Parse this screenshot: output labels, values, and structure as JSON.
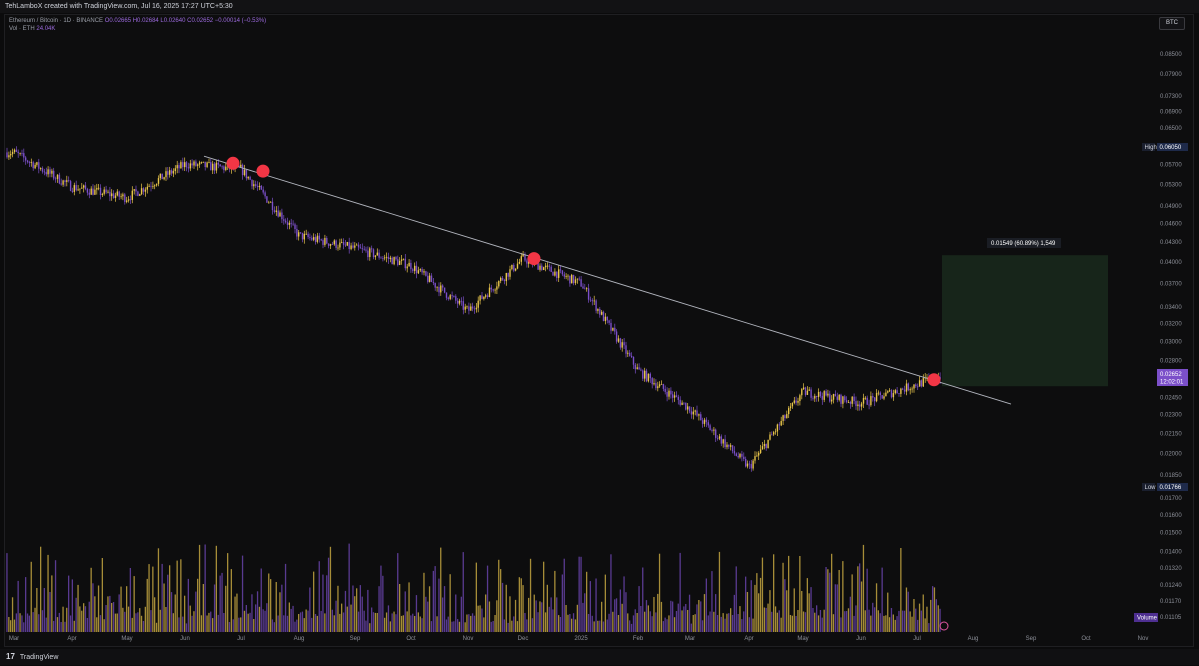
{
  "header": {
    "caption": "TehLamboX created with TradingView.com, Jul 16, 2025 17:27 UTC+5:30"
  },
  "legend": {
    "symbol": "Ethereum / Bitcoin · 1D · BINANCE",
    "ohlc": "O0.02665 H0.02684 L0.02640 C0.02652 −0.00014 (−0.53%)",
    "vol_label": "Vol · ETH",
    "vol_value": "24.04K"
  },
  "currency_badge": "BTC",
  "footer": {
    "logo": "17",
    "brand": "TradingView"
  },
  "colors": {
    "bullish": "#e8c54a",
    "bearish": "#7b4fc9",
    "touch_marker": "#f23645",
    "trendline": "#b2b5be",
    "target_box": "#1a2a1c"
  },
  "chart_data": {
    "type": "candlestick",
    "title": "",
    "y_axis": {
      "scale": "log",
      "ticks": [
        "0.08500",
        "0.07900",
        "0.07300",
        "0.06900",
        "0.06500",
        "0.05700",
        "0.05300",
        "0.04900",
        "0.04600",
        "0.04300",
        "0.04000",
        "0.03700",
        "0.03400",
        "0.03200",
        "0.03000",
        "0.02800",
        "0.02450",
        "0.02300",
        "0.02150",
        "0.02000",
        "0.01850",
        "0.01700",
        "0.01600",
        "0.01500",
        "0.01400",
        "0.01320",
        "0.01240",
        "0.01170",
        "0.01105"
      ]
    },
    "x_axis": {
      "ticks": [
        "Mar",
        "Apr",
        "May",
        "Jun",
        "Jul",
        "Aug",
        "Sep",
        "Oct",
        "Nov",
        "Dec",
        "2025",
        "Feb",
        "Mar",
        "Apr",
        "May",
        "Jun",
        "Jul",
        "Aug",
        "Sep",
        "Oct",
        "Nov"
      ]
    },
    "price_labels": {
      "high_label": "High",
      "high_value": "0.06050",
      "low_label": "Low",
      "low_value": "0.01766",
      "last_value": "0.02652",
      "countdown": "12:02:01"
    },
    "volume_label": "Volume",
    "measure_label": "0.01549 (60.89%) 1,549",
    "series": [
      {
        "name": "price",
        "anchors": [
          {
            "x": "Mar",
            "close": 0.0595
          },
          {
            "x": "Apr",
            "close": 0.0525
          },
          {
            "x": "May",
            "close": 0.0505
          },
          {
            "x": "Jun",
            "close": 0.057
          },
          {
            "x": "Jul",
            "close": 0.056
          },
          {
            "x": "Aug",
            "close": 0.044
          },
          {
            "x": "Sep",
            "close": 0.042
          },
          {
            "x": "Oct",
            "close": 0.0395
          },
          {
            "x": "Nov",
            "close": 0.0335
          },
          {
            "x": "Dec",
            "close": 0.0405
          },
          {
            "x": "2025",
            "close": 0.037
          },
          {
            "x": "Feb",
            "close": 0.027
          },
          {
            "x": "Mar",
            "close": 0.0235
          },
          {
            "x": "Apr",
            "close": 0.019
          },
          {
            "x": "May",
            "close": 0.025
          },
          {
            "x": "Jun",
            "close": 0.024
          },
          {
            "x": "Jul",
            "close": 0.0265
          }
        ]
      }
    ],
    "trendline": {
      "start": {
        "x": "Jun",
        "y": 0.0587
      },
      "end": {
        "x": "Aug",
        "y": 0.0239
      }
    },
    "touch_points": [
      {
        "x": "Jul",
        "y": 0.0572
      },
      {
        "x": "Jul",
        "y": 0.0556
      },
      {
        "x": "Dec",
        "y": 0.0405
      },
      {
        "x": "Jul",
        "y": 0.0261
      }
    ],
    "target_zone": {
      "from": 0.0255,
      "to": 0.041
    }
  }
}
